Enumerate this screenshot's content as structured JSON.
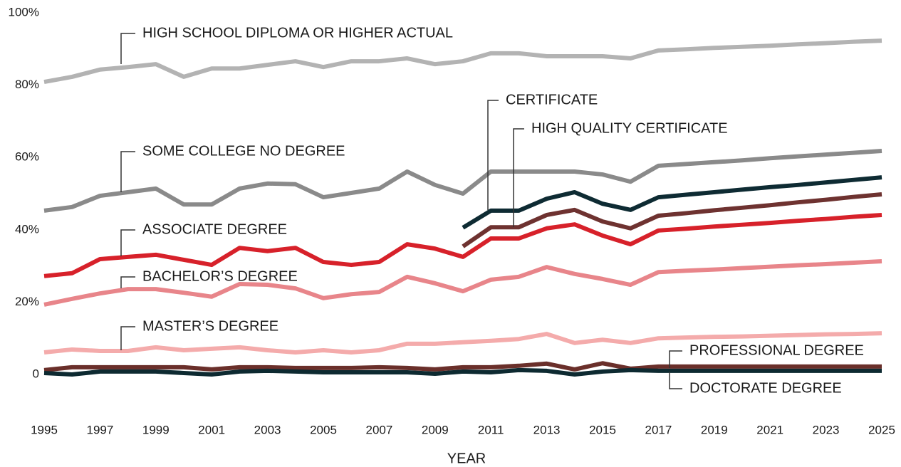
{
  "chart_data": {
    "type": "line",
    "x_label": "YEAR",
    "x": [
      1995,
      1996,
      1997,
      1998,
      1999,
      2000,
      2001,
      2002,
      2003,
      2004,
      2005,
      2006,
      2007,
      2008,
      2009,
      2010,
      2011,
      2012,
      2013,
      2014,
      2015,
      2016,
      2017,
      2018,
      2019,
      2020,
      2021,
      2022,
      2023,
      2024,
      2025
    ],
    "xlim": [
      1995,
      2025
    ],
    "xticks": [
      1995,
      1997,
      1999,
      2001,
      2003,
      2005,
      2007,
      2009,
      2011,
      2013,
      2015,
      2017,
      2019,
      2021,
      2023,
      2025
    ],
    "ylim": [
      0,
      100
    ],
    "yticks": [
      0,
      {
        "value": 20,
        "label": "20%"
      },
      {
        "value": 40,
        "label": "40%"
      },
      {
        "value": 60,
        "label": "60%"
      },
      {
        "value": 80,
        "label": "80%"
      },
      {
        "value": 100,
        "label": "100%"
      }
    ],
    "grid": false,
    "series": [
      {
        "name": "HIGH SCHOOL DIPLOMA OR HIGHER ACTUAL",
        "color": "#b3b3b3",
        "values": [
          80.9,
          82.3,
          84.3,
          85,
          85.8,
          82.3,
          84.6,
          84.6,
          85.6,
          86.6,
          85,
          86.6,
          86.6,
          87.4,
          85.8,
          86.6,
          88.8,
          88.8,
          88,
          88,
          88,
          87.4,
          89.6,
          89.9,
          90.3,
          90.6,
          90.9,
          91.3,
          91.6,
          92.0,
          92.3
        ]
      },
      {
        "name": "SOME COLLEGE NO DEGREE",
        "color": "#8a8a8a",
        "values": [
          45.3,
          46.3,
          49.4,
          50.4,
          51.4,
          47,
          47,
          51.4,
          52.8,
          52.6,
          49,
          50.2,
          51.4,
          56.1,
          52.4,
          50,
          56.1,
          56.1,
          56.1,
          56.1,
          55.3,
          53.3,
          57.7,
          58.2,
          58.7,
          59.2,
          59.8,
          60.3,
          60.8,
          61.3,
          61.8
        ]
      },
      {
        "name": "CERTIFICATE",
        "color": "#0e2b33",
        "values": [
          null,
          null,
          null,
          null,
          null,
          null,
          null,
          null,
          null,
          null,
          null,
          null,
          null,
          null,
          null,
          40.6,
          45.3,
          45.3,
          48.6,
          50.4,
          47.2,
          45.5,
          49,
          49.7,
          50.4,
          51.1,
          51.8,
          52.4,
          53.1,
          53.8,
          54.5
        ]
      },
      {
        "name": "HIGH QUALITY CERTIFICATE",
        "color": "#6e3230",
        "values": [
          null,
          null,
          null,
          null,
          null,
          null,
          null,
          null,
          null,
          null,
          null,
          null,
          null,
          null,
          null,
          35.4,
          40.7,
          40.7,
          44.1,
          45.5,
          42.3,
          40.4,
          43.9,
          44.6,
          45.4,
          46.1,
          46.8,
          47.6,
          48.3,
          49.1,
          49.8
        ]
      },
      {
        "name": "ASSOCIATE DEGREE",
        "color": "#d7212a",
        "values": [
          27.2,
          28,
          31.9,
          32.5,
          33.1,
          31.7,
          30.3,
          35,
          34.1,
          35,
          31.1,
          30.3,
          31.1,
          36,
          34.8,
          32.5,
          37.6,
          37.6,
          40.4,
          41.5,
          38.4,
          36,
          39.8,
          40.3,
          40.9,
          41.4,
          41.9,
          42.5,
          43,
          43.6,
          44.1
        ]
      },
      {
        "name": "BACHELOR’S DEGREE",
        "color": "#e8858a",
        "values": [
          19.3,
          20.9,
          22.4,
          23.6,
          23.6,
          22.6,
          21.5,
          25,
          24.8,
          23.8,
          21.1,
          22.2,
          22.8,
          27,
          25.2,
          23,
          26.2,
          27,
          29.7,
          27.8,
          26.4,
          24.8,
          28.3,
          28.7,
          29.0,
          29.4,
          29.8,
          30.2,
          30.5,
          30.9,
          31.3
        ]
      },
      {
        "name": "MASTER’S DEGREE",
        "color": "#f4abab",
        "values": [
          6.1,
          6.9,
          6.5,
          6.5,
          7.5,
          6.7,
          7.1,
          7.5,
          6.7,
          6.1,
          6.7,
          6.1,
          6.7,
          8.5,
          8.5,
          8.9,
          9.3,
          9.8,
          11.2,
          8.7,
          9.6,
          8.7,
          10,
          10.2,
          10.4,
          10.5,
          10.7,
          10.9,
          11.1,
          11.2,
          11.4
        ]
      },
      {
        "name": "PROFESSIONAL DEGREE",
        "color": "#6a2f2a",
        "values": [
          1.2,
          2,
          2,
          2,
          2,
          2,
          1.4,
          2,
          2,
          1.8,
          1.8,
          1.8,
          2,
          1.8,
          1.4,
          2,
          2,
          2.4,
          3,
          1.4,
          3.1,
          1.6,
          2.2,
          2.2,
          2.2,
          2.2,
          2.2,
          2.2,
          2.2,
          2.2,
          2.2
        ]
      },
      {
        "name": "DOCTORATE DEGREE",
        "color": "#0d2a31",
        "values": [
          0.4,
          0,
          0.8,
          0.8,
          0.8,
          0.4,
          0,
          0.8,
          1,
          0.8,
          0.6,
          0.6,
          0.6,
          0.6,
          0.2,
          0.8,
          0.6,
          1.2,
          1,
          0,
          0.8,
          1.2,
          1,
          1,
          1,
          1,
          1,
          1,
          1,
          1,
          1
        ]
      }
    ]
  }
}
